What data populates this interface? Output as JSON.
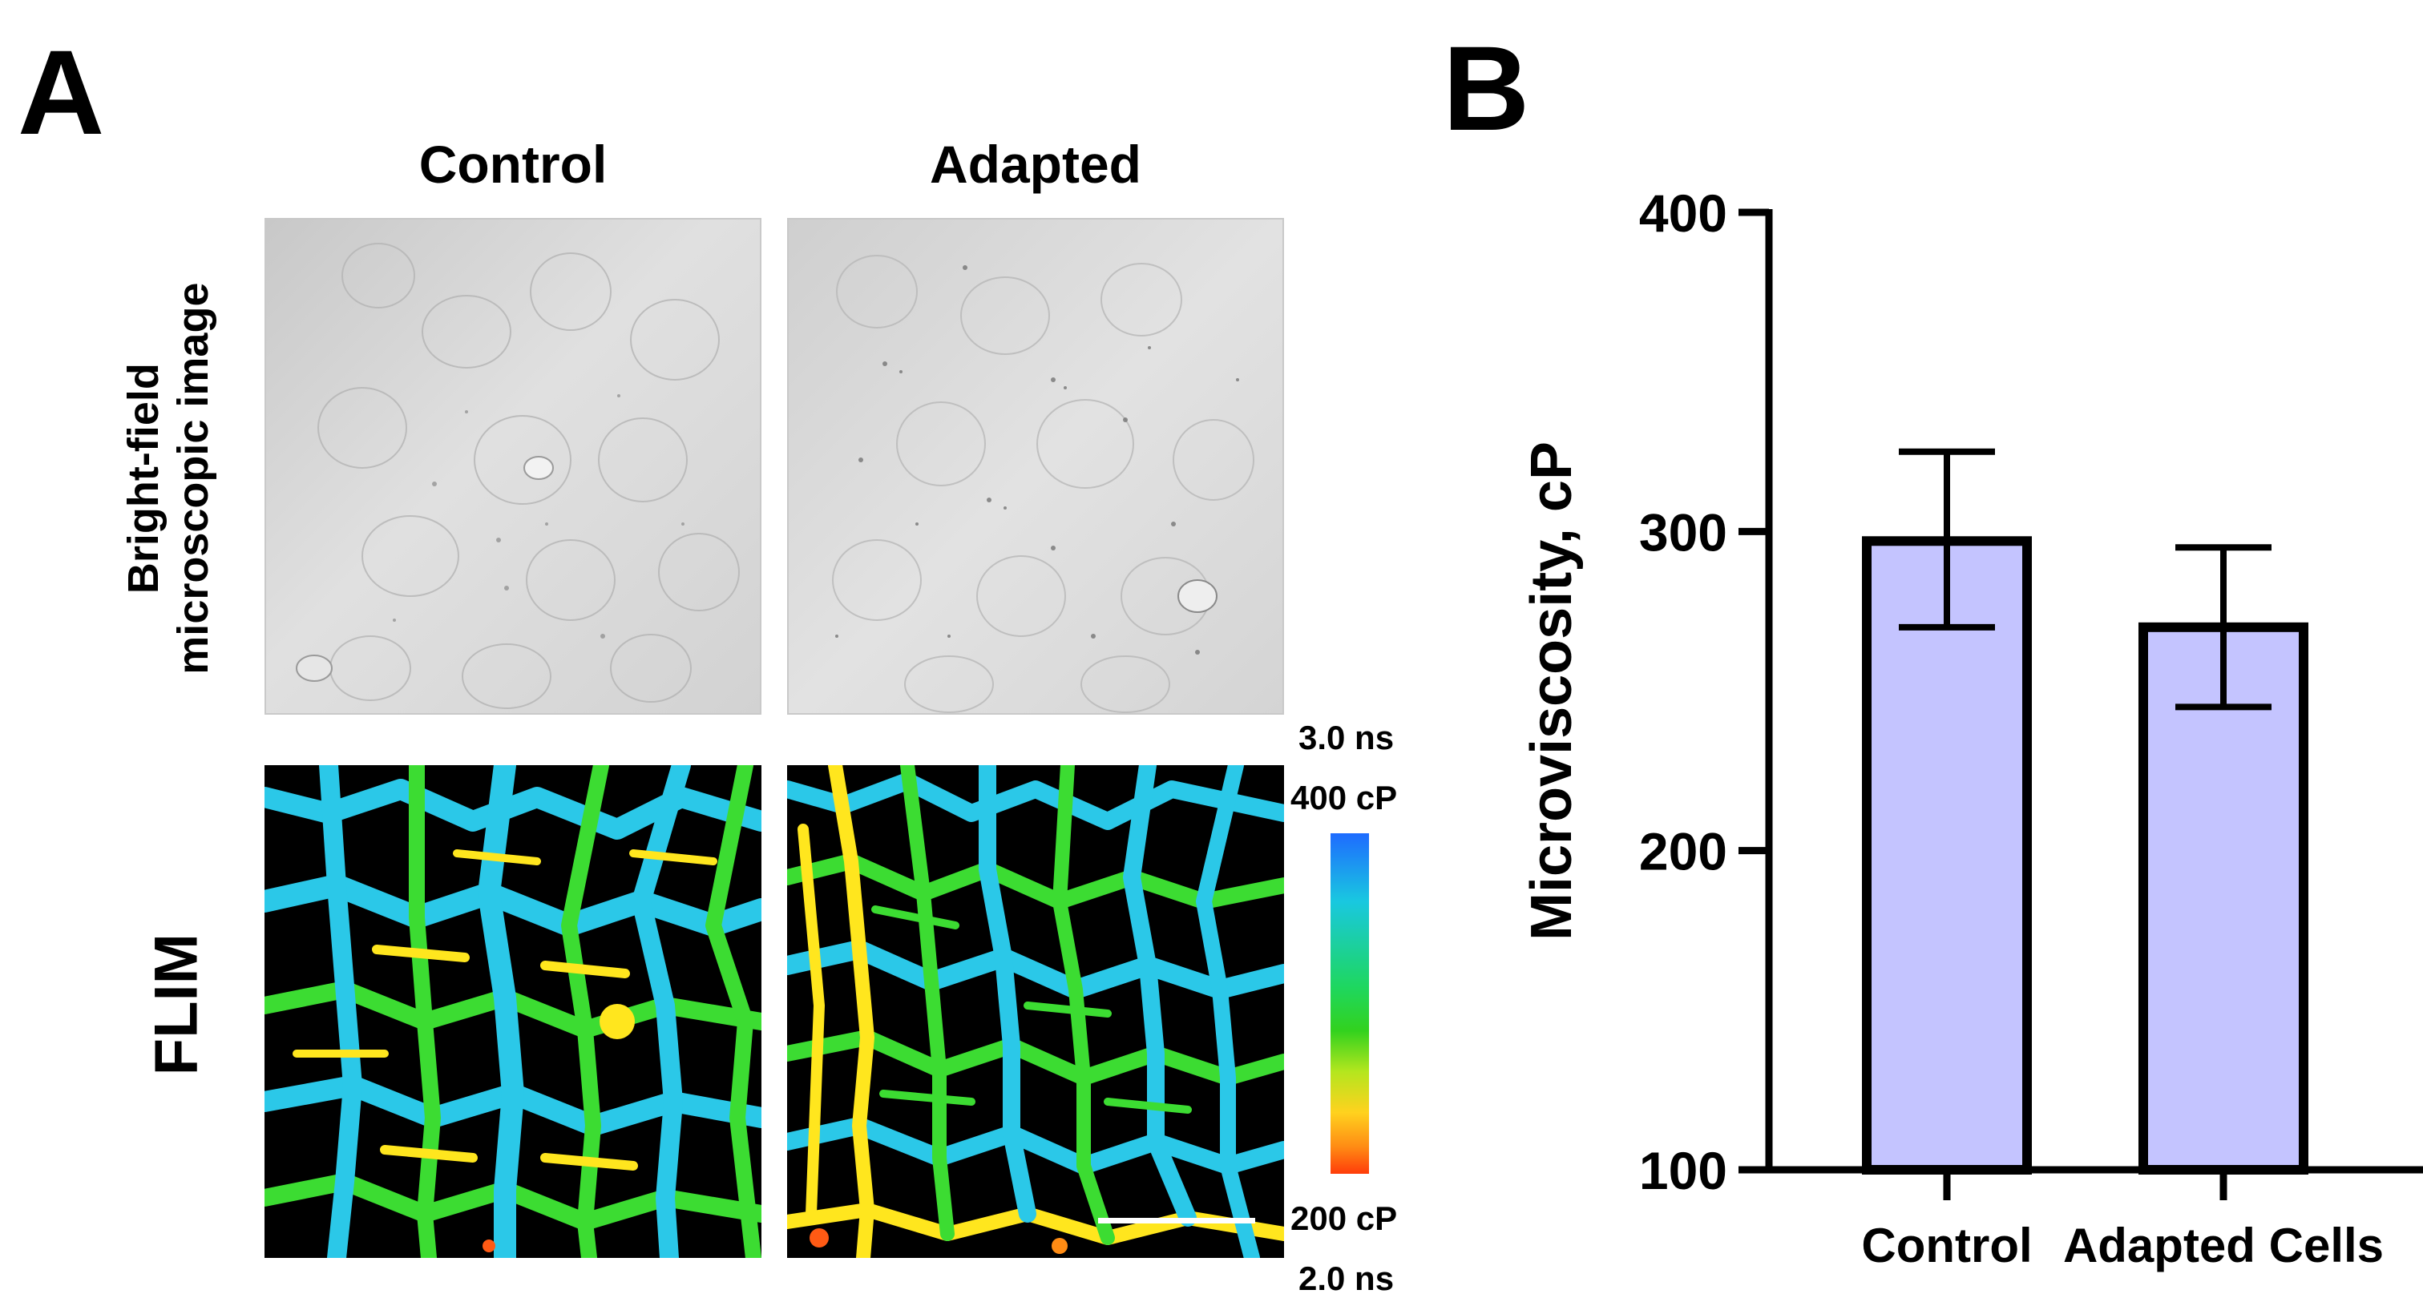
{
  "panel_a": {
    "letter": "A",
    "columns": [
      "Control",
      "Adapted"
    ],
    "row_labels": {
      "brightfield_line1": "Bright-field",
      "brightfield_line2": "microscopic image",
      "flim": "FLIM"
    },
    "colorbar": {
      "top_time": "3.0 ns",
      "top_visc": "400 cP",
      "bottom_visc": "200 cP",
      "bottom_time": "2.0 ns",
      "colors": [
        "#1e6bff",
        "#19c8e0",
        "#1ed760",
        "#32d21e",
        "#b4e61e",
        "#ffd21e",
        "#ff8c14",
        "#ff3c0a"
      ]
    },
    "flim_colors": {
      "background": "#000000",
      "high": "#2bc8e8",
      "mid": "#3cdc32",
      "low": "#ffe61e",
      "lowest": "#ff5a14"
    }
  },
  "panel_b": {
    "letter": "B",
    "bar_fill": "#c4c4ff",
    "bar_stroke": "#000000"
  },
  "chart_data": {
    "type": "bar",
    "categories": [
      "Control",
      "Adapted Cells"
    ],
    "values": [
      297,
      270
    ],
    "error_upper": [
      325,
      295
    ],
    "error_lower": [
      270,
      245
    ],
    "xlabel": "",
    "ylabel": "Microviscosity, cP",
    "ylim": [
      100,
      400
    ],
    "yticks": [
      100,
      200,
      300,
      400
    ],
    "grid": false,
    "legend": "none"
  }
}
